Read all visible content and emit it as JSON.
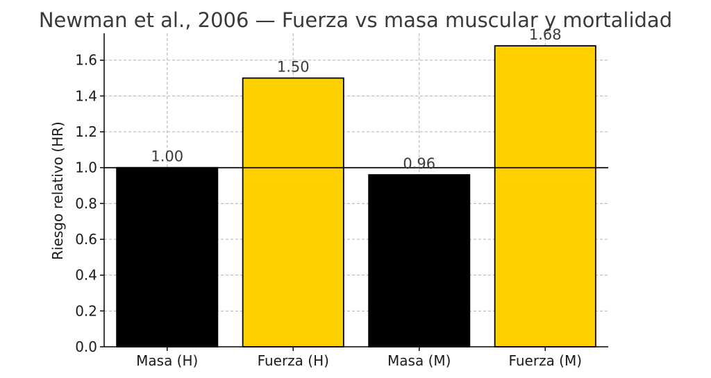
{
  "chart_data": {
    "type": "bar",
    "title": "Newman et al., 2006 — Fuerza vs masa muscular y mortalidad",
    "xlabel": "",
    "ylabel": "Riesgo relativo (HR)",
    "categories": [
      "Masa (H)",
      "Fuerza (H)",
      "Masa (M)",
      "Fuerza (M)"
    ],
    "values": [
      1.0,
      1.5,
      0.96,
      1.68
    ],
    "value_labels": [
      "1.00",
      "1.50",
      "0.96",
      "1.68"
    ],
    "bar_colors": [
      "#000000",
      "#ffd000",
      "#000000",
      "#ffd000"
    ],
    "ylim": [
      0,
      1.75
    ],
    "yticks": [
      0.0,
      0.2,
      0.4,
      0.6,
      0.8,
      1.0,
      1.2,
      1.4,
      1.6
    ],
    "ytick_labels": [
      "0.0",
      "0.2",
      "0.4",
      "0.6",
      "0.8",
      "1.0",
      "1.2",
      "1.4",
      "1.6"
    ],
    "reference_line": 1.0,
    "grid": true
  }
}
